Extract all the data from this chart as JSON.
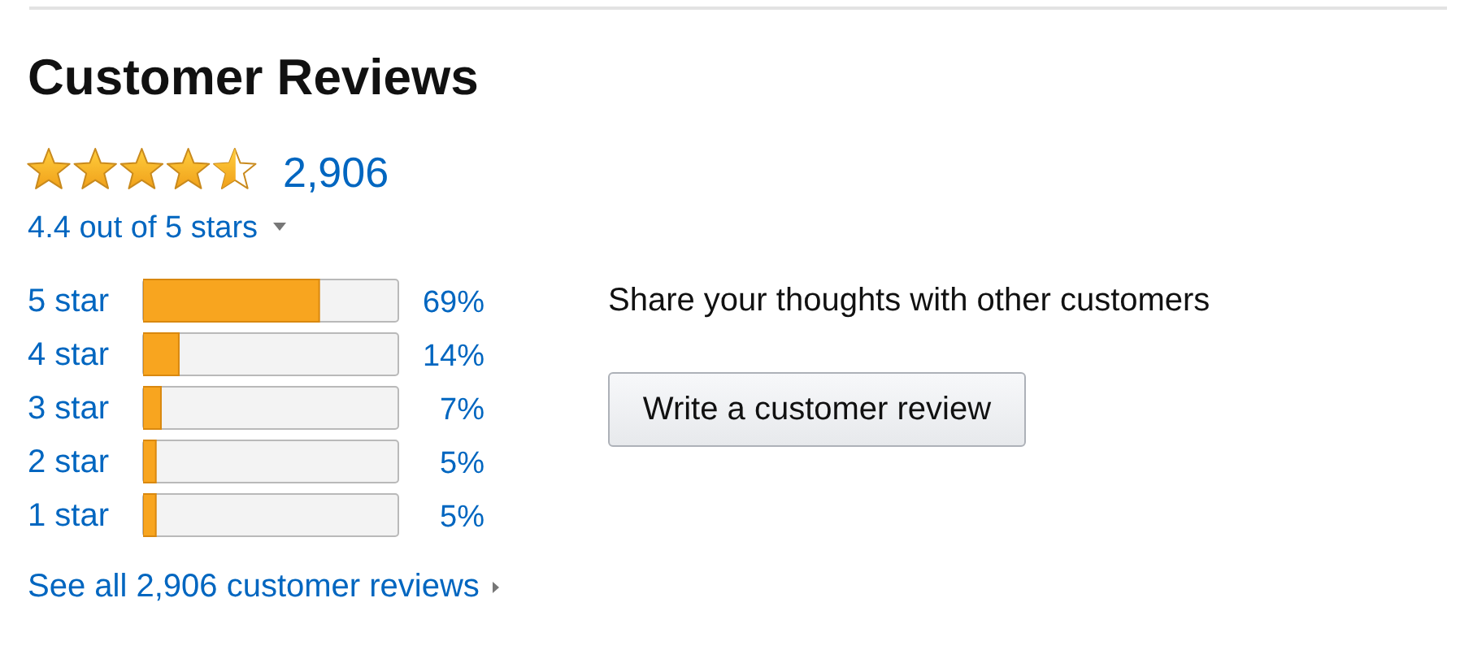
{
  "chart_data": {
    "type": "bar",
    "orientation": "horizontal",
    "title": "Customer Reviews",
    "categories": [
      "5 star",
      "4 star",
      "3 star",
      "2 star",
      "1 star"
    ],
    "values": [
      69,
      14,
      7,
      5,
      5
    ],
    "value_labels": [
      "69%",
      "14%",
      "7%",
      "5%",
      "5%"
    ],
    "color": "#f8a51f",
    "xlim": [
      0,
      100
    ],
    "tick_labels": "y",
    "annotations": [
      "2,906",
      "4.4 out of 5 stars",
      "Share your thoughts with other customers",
      "Write a customer review",
      "See all 2,906 customer reviews"
    ]
  }
}
